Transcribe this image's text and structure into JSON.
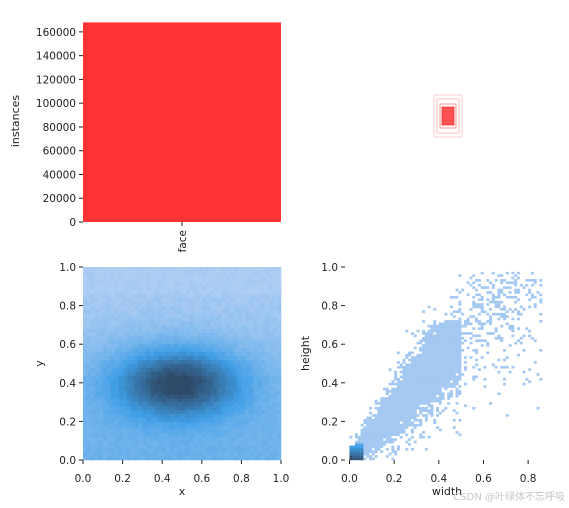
{
  "chart_data": [
    {
      "type": "bar",
      "categories": [
        "face"
      ],
      "values": [
        168000
      ],
      "color": "#ff3333",
      "ylabel": "instances",
      "xlabel": "",
      "ylim": [
        0,
        170000
      ],
      "yticks": [
        0,
        20000,
        40000,
        60000,
        80000,
        100000,
        120000,
        140000,
        160000
      ],
      "ytick_labels": [
        "0",
        "20000",
        "40000",
        "60000",
        "80000",
        "100000",
        "120000",
        "140000",
        "160000"
      ],
      "grid": false
    },
    {
      "type": "other",
      "description_kind": "box-outlines",
      "color": "#ff3333"
    },
    {
      "type": "heatmap",
      "xlabel": "x",
      "ylabel": "y",
      "xlim": [
        0,
        1
      ],
      "ylim": [
        0,
        1
      ],
      "xticks": [
        0.0,
        0.2,
        0.4,
        0.6,
        0.8,
        1.0
      ],
      "xtick_labels": [
        "0.0",
        "0.2",
        "0.4",
        "0.6",
        "0.8",
        "1.0"
      ],
      "yticks": [
        0.0,
        0.2,
        0.4,
        0.6,
        0.8,
        1.0
      ],
      "ytick_labels": [
        "0.0",
        "0.2",
        "0.4",
        "0.6",
        "0.8",
        "1.0"
      ],
      "density_center": [
        0.48,
        0.4
      ],
      "colormap": [
        "#aecdf3",
        "#3f9ee6",
        "#2f4a68"
      ]
    },
    {
      "type": "heatmap",
      "xlabel": "width",
      "ylabel": "height",
      "xlim": [
        -0.02,
        0.88
      ],
      "ylim": [
        0,
        1
      ],
      "xticks": [
        0.0,
        0.2,
        0.4,
        0.6,
        0.8
      ],
      "xtick_labels": [
        "0.0",
        "0.2",
        "0.4",
        "0.6",
        "0.8"
      ],
      "yticks": [
        0.0,
        0.2,
        0.4,
        0.6,
        0.8,
        1.0
      ],
      "ytick_labels": [
        "0.0",
        "0.2",
        "0.4",
        "0.6",
        "0.8",
        "1.0"
      ],
      "colormap": [
        "#aecdf3",
        "#3f9ee6",
        "#2f4a68"
      ]
    }
  ],
  "watermark": "CSDN @叶绿体不忘呼吸"
}
